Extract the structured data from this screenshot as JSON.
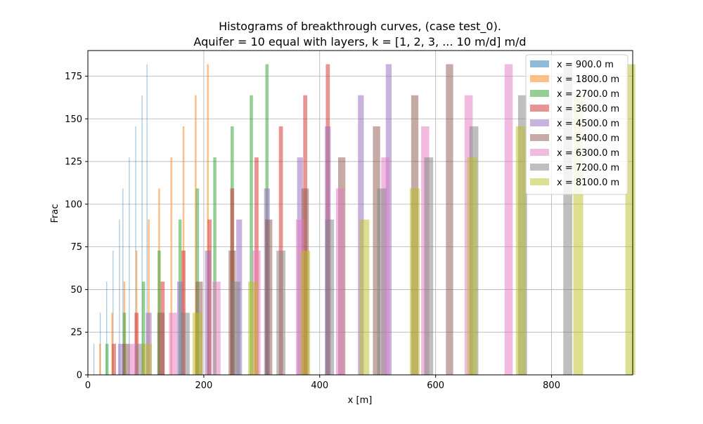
{
  "chart_data": {
    "type": "bar",
    "title_line1": "Histograms of breakthrough curves, (case test_0).",
    "title_line2": "Aquifer = 10 equal with layers, k = [1, 2, 3, ... 10 m/d] m/d",
    "xlabel": "x [m]",
    "ylabel": "Frac",
    "xlim": [
      0,
      940
    ],
    "ylim": [
      0,
      190
    ],
    "xticks": [
      0,
      200,
      400,
      600,
      800
    ],
    "yticks": [
      0,
      25,
      50,
      75,
      100,
      125,
      150,
      175
    ],
    "grid": true,
    "legend_position": "top-right",
    "alpha": 0.5,
    "series": [
      {
        "name": "x = 900.0 m",
        "color": "#1f77b4",
        "bin_width": 1.0,
        "points": [
          [
            10.5,
            18.2
          ],
          [
            21.5,
            36.4
          ],
          [
            32.5,
            54.6
          ],
          [
            43.5,
            72.8
          ],
          [
            54.5,
            91.0
          ],
          [
            60.5,
            109.2
          ],
          [
            71.5,
            127.4
          ],
          [
            82.5,
            145.6
          ],
          [
            93.5,
            163.8
          ],
          [
            102,
            182.0
          ]
        ]
      },
      {
        "name": "x = 1800.0 m",
        "color": "#ff7f0e",
        "bin_width": 3.0,
        "points": [
          [
            21,
            18.2
          ],
          [
            42,
            36.4
          ],
          [
            63,
            54.6
          ],
          [
            84,
            72.8
          ],
          [
            105,
            91.0
          ],
          [
            123,
            109.2
          ],
          [
            144,
            127.4
          ],
          [
            165,
            145.6
          ],
          [
            186,
            163.8
          ],
          [
            207,
            182.0
          ]
        ]
      },
      {
        "name": "x = 2700.0 m",
        "color": "#2ca02c",
        "bin_width": 5.5,
        "points": [
          [
            33,
            18.2
          ],
          [
            63,
            36.4
          ],
          [
            96,
            54.6
          ],
          [
            123,
            72.8
          ],
          [
            159,
            91.0
          ],
          [
            189,
            109.2
          ],
          [
            219,
            127.4
          ],
          [
            249,
            145.6
          ],
          [
            282,
            163.8
          ],
          [
            309,
            182.0
          ]
        ]
      },
      {
        "name": "x = 3600.0 m",
        "color": "#d62728",
        "bin_width": 7.0,
        "points": [
          [
            45,
            18.2
          ],
          [
            84,
            36.4
          ],
          [
            129,
            54.6
          ],
          [
            165,
            72.8
          ],
          [
            210,
            91.0
          ],
          [
            249,
            109.2
          ],
          [
            291,
            127.4
          ],
          [
            333,
            145.6
          ],
          [
            375,
            163.8
          ],
          [
            414,
            182.0
          ]
        ]
      },
      {
        "name": "x = 4500.0 m",
        "color": "#9467bd",
        "bin_width": 10.0,
        "points": [
          [
            57,
            18.2
          ],
          [
            105,
            36.4
          ],
          [
            159,
            54.6
          ],
          [
            207,
            72.8
          ],
          [
            261,
            91.0
          ],
          [
            309,
            109.2
          ],
          [
            366,
            127.4
          ],
          [
            414,
            145.6
          ],
          [
            471,
            163.8
          ],
          [
            519,
            182.0
          ]
        ]
      },
      {
        "name": "x = 5400.0 m",
        "color": "#8c564b",
        "bin_width": 12.5,
        "points": [
          [
            66,
            18.2
          ],
          [
            126,
            36.4
          ],
          [
            192,
            54.6
          ],
          [
            249,
            72.8
          ],
          [
            312,
            91.0
          ],
          [
            375,
            109.2
          ],
          [
            438,
            127.4
          ],
          [
            498,
            145.6
          ],
          [
            564,
            163.8
          ],
          [
            624,
            182.0
          ]
        ]
      },
      {
        "name": "x = 6300.0 m",
        "color": "#e377c2",
        "bin_width": 14.0,
        "points": [
          [
            78,
            18.2
          ],
          [
            147,
            36.4
          ],
          [
            222,
            54.6
          ],
          [
            291,
            72.8
          ],
          [
            366,
            91.0
          ],
          [
            435,
            109.2
          ],
          [
            513,
            127.4
          ],
          [
            582,
            145.6
          ],
          [
            657,
            163.8
          ],
          [
            726,
            182.0
          ]
        ]
      },
      {
        "name": "x = 7200.0 m",
        "color": "#7f7f7f",
        "bin_width": 15.5,
        "points": [
          [
            90,
            18.2
          ],
          [
            168,
            36.4
          ],
          [
            255,
            54.6
          ],
          [
            333,
            72.8
          ],
          [
            417,
            91.0
          ],
          [
            507,
            109.2
          ],
          [
            588,
            127.4
          ],
          [
            666,
            145.6
          ],
          [
            750,
            163.8
          ],
          [
            828,
            182.0
          ]
        ]
      },
      {
        "name": "x = 8100.0 m",
        "color": "#bcbd22",
        "bin_width": 17.0,
        "points": [
          [
            102,
            18.2
          ],
          [
            189,
            36.4
          ],
          [
            285,
            54.6
          ],
          [
            375,
            72.8
          ],
          [
            477,
            91.0
          ],
          [
            564,
            109.2
          ],
          [
            663,
            127.4
          ],
          [
            747,
            145.6
          ],
          [
            846,
            163.8
          ],
          [
            936,
            182.0
          ]
        ]
      }
    ]
  }
}
